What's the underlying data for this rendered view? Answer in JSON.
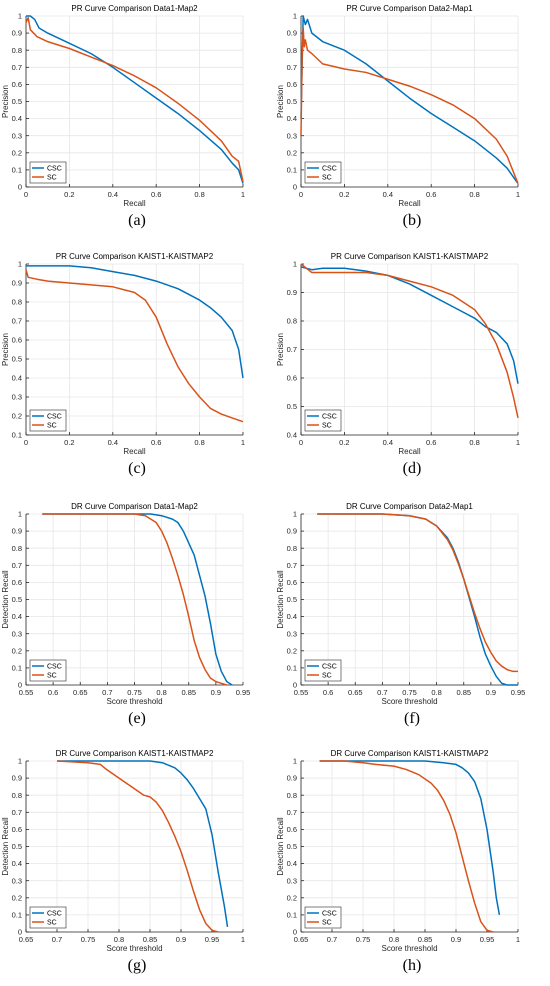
{
  "colors": {
    "csc": "#0072BD",
    "sc": "#D95319",
    "grid": "#e6e6e6",
    "axis": "#262626"
  },
  "chart_data": [
    {
      "id": "a",
      "type": "line",
      "label": "(a)",
      "title": "PR Curve Comparison Data1-Map2",
      "xlabel": "Recall",
      "ylabel": "Precision",
      "xlim": [
        0,
        1
      ],
      "ylim": [
        0,
        1
      ],
      "xticks": [
        0,
        0.2,
        0.4,
        0.6,
        0.8,
        1
      ],
      "xticklabels": [
        "0",
        "0.2",
        "0.4",
        "0.6",
        "0.8",
        "1"
      ],
      "yticks": [
        0,
        0.1,
        0.2,
        0.3,
        0.4,
        0.5,
        0.6,
        0.7,
        0.8,
        0.9,
        1
      ],
      "yticklabels": [
        "0",
        "0.1",
        "0.2",
        "0.3",
        "0.4",
        "0.5",
        "0.6",
        "0.7",
        "0.8",
        "0.9",
        "1"
      ],
      "grid": true,
      "legend": "bottom-left",
      "series": [
        {
          "name": "CSC",
          "x": [
            0,
            0.02,
            0.04,
            0.06,
            0.1,
            0.15,
            0.2,
            0.3,
            0.4,
            0.5,
            0.6,
            0.7,
            0.8,
            0.9,
            0.95,
            0.98,
            1
          ],
          "y": [
            1,
            1,
            0.98,
            0.93,
            0.9,
            0.87,
            0.84,
            0.78,
            0.7,
            0.61,
            0.52,
            0.43,
            0.33,
            0.22,
            0.14,
            0.1,
            0.02
          ]
        },
        {
          "name": "SC",
          "x": [
            0,
            0.01,
            0.02,
            0.05,
            0.1,
            0.2,
            0.3,
            0.4,
            0.5,
            0.6,
            0.7,
            0.8,
            0.9,
            0.95,
            0.98,
            1
          ],
          "y": [
            0.96,
            0.99,
            0.92,
            0.88,
            0.85,
            0.81,
            0.76,
            0.71,
            0.65,
            0.58,
            0.49,
            0.39,
            0.27,
            0.18,
            0.15,
            0.03
          ]
        }
      ]
    },
    {
      "id": "b",
      "type": "line",
      "label": "(b)",
      "title": "PR Curve Comparison Data2-Map1",
      "xlabel": "Recall",
      "ylabel": "Precision",
      "xlim": [
        0,
        1
      ],
      "ylim": [
        0,
        1
      ],
      "xticks": [
        0,
        0.2,
        0.4,
        0.6,
        0.8,
        1
      ],
      "xticklabels": [
        "0",
        "0.2",
        "0.4",
        "0.6",
        "0.8",
        "1"
      ],
      "yticks": [
        0,
        0.1,
        0.2,
        0.3,
        0.4,
        0.5,
        0.6,
        0.7,
        0.8,
        0.9,
        1
      ],
      "yticklabels": [
        "0",
        "0.1",
        "0.2",
        "0.3",
        "0.4",
        "0.5",
        "0.6",
        "0.7",
        "0.8",
        "0.9",
        "1"
      ],
      "grid": true,
      "legend": "bottom-left",
      "series": [
        {
          "name": "CSC",
          "x": [
            0,
            0.01,
            0.02,
            0.03,
            0.05,
            0.1,
            0.2,
            0.3,
            0.4,
            0.5,
            0.6,
            0.7,
            0.8,
            0.9,
            0.95,
            1
          ],
          "y": [
            0.4,
            1,
            0.95,
            0.98,
            0.9,
            0.85,
            0.8,
            0.72,
            0.62,
            0.52,
            0.43,
            0.35,
            0.27,
            0.17,
            0.11,
            0.02
          ]
        },
        {
          "name": "SC",
          "x": [
            0,
            0.005,
            0.01,
            0.015,
            0.02,
            0.03,
            0.05,
            0.1,
            0.2,
            0.3,
            0.4,
            0.5,
            0.6,
            0.7,
            0.8,
            0.9,
            0.95,
            1
          ],
          "y": [
            0.3,
            0.75,
            0.93,
            0.82,
            0.86,
            0.8,
            0.78,
            0.72,
            0.69,
            0.67,
            0.63,
            0.59,
            0.54,
            0.48,
            0.4,
            0.28,
            0.18,
            0.02
          ]
        }
      ]
    },
    {
      "id": "c",
      "type": "line",
      "label": "(c)",
      "title": "PR Curve Comparison KAIST1-KAISTMAP2",
      "xlabel": "Recall",
      "ylabel": "Precision",
      "xlim": [
        0,
        1
      ],
      "ylim": [
        0.1,
        1
      ],
      "xticks": [
        0,
        0.2,
        0.4,
        0.6,
        0.8,
        1
      ],
      "xticklabels": [
        "0",
        "0.2",
        "0.4",
        "0.6",
        "0.8",
        "1"
      ],
      "yticks": [
        0.1,
        0.2,
        0.3,
        0.4,
        0.5,
        0.6,
        0.7,
        0.8,
        0.9,
        1
      ],
      "yticklabels": [
        "0.1",
        "0.2",
        "0.3",
        "0.4",
        "0.5",
        "0.6",
        "0.7",
        "0.8",
        "0.9",
        "1"
      ],
      "grid": true,
      "legend": "bottom-left",
      "series": [
        {
          "name": "CSC",
          "x": [
            0,
            0.1,
            0.2,
            0.3,
            0.4,
            0.5,
            0.6,
            0.7,
            0.8,
            0.85,
            0.9,
            0.95,
            0.98,
            1
          ],
          "y": [
            0.99,
            0.99,
            0.99,
            0.98,
            0.96,
            0.94,
            0.91,
            0.87,
            0.81,
            0.77,
            0.72,
            0.65,
            0.55,
            0.4
          ]
        },
        {
          "name": "SC",
          "x": [
            0,
            0.01,
            0.05,
            0.1,
            0.2,
            0.3,
            0.4,
            0.5,
            0.55,
            0.6,
            0.65,
            0.7,
            0.75,
            0.8,
            0.85,
            0.9,
            0.95,
            1
          ],
          "y": [
            0.97,
            0.93,
            0.92,
            0.91,
            0.9,
            0.89,
            0.88,
            0.85,
            0.81,
            0.72,
            0.58,
            0.46,
            0.37,
            0.3,
            0.24,
            0.21,
            0.19,
            0.17
          ]
        }
      ]
    },
    {
      "id": "d",
      "type": "line",
      "label": "(d)",
      "title": "PR Curve Comparison KAIST1-KAISTMAP2",
      "xlabel": "Recall",
      "ylabel": "Precision",
      "xlim": [
        0,
        1
      ],
      "ylim": [
        0.4,
        1
      ],
      "xticks": [
        0,
        0.2,
        0.4,
        0.6,
        0.8,
        1
      ],
      "xticklabels": [
        "0",
        "0.2",
        "0.4",
        "0.6",
        "0.8",
        "1"
      ],
      "yticks": [
        0.4,
        0.5,
        0.6,
        0.7,
        0.8,
        0.9,
        1
      ],
      "yticklabels": [
        "0.4",
        "0.5",
        "0.6",
        "0.7",
        "0.8",
        "0.9",
        "1"
      ],
      "grid": true,
      "legend": "bottom-left",
      "series": [
        {
          "name": "CSC",
          "x": [
            0,
            0.05,
            0.1,
            0.2,
            0.3,
            0.4,
            0.5,
            0.6,
            0.7,
            0.8,
            0.85,
            0.9,
            0.95,
            0.98,
            1
          ],
          "y": [
            0.99,
            0.98,
            0.985,
            0.985,
            0.975,
            0.96,
            0.93,
            0.89,
            0.85,
            0.81,
            0.78,
            0.76,
            0.72,
            0.66,
            0.58
          ]
        },
        {
          "name": "SC",
          "x": [
            0,
            0.05,
            0.1,
            0.2,
            0.3,
            0.4,
            0.5,
            0.6,
            0.7,
            0.8,
            0.85,
            0.9,
            0.95,
            0.98,
            1
          ],
          "y": [
            1,
            0.97,
            0.97,
            0.97,
            0.97,
            0.96,
            0.94,
            0.92,
            0.89,
            0.84,
            0.79,
            0.72,
            0.62,
            0.53,
            0.46
          ]
        }
      ]
    },
    {
      "id": "e",
      "type": "line",
      "label": "(e)",
      "title": "DR Curve Comparison Data1-Map2",
      "xlabel": "Score threshold",
      "ylabel": "Detection Recall",
      "xlim": [
        0.55,
        0.95
      ],
      "ylim": [
        0,
        1
      ],
      "xticks": [
        0.55,
        0.6,
        0.65,
        0.7,
        0.75,
        0.8,
        0.85,
        0.9,
        0.95
      ],
      "xticklabels": [
        "0.55",
        "0.6",
        "0.65",
        "0.7",
        "0.75",
        "0.8",
        "0.85",
        "0.9",
        "0.95"
      ],
      "yticks": [
        0,
        0.1,
        0.2,
        0.3,
        0.4,
        0.5,
        0.6,
        0.7,
        0.8,
        0.9,
        1
      ],
      "yticklabels": [
        "0",
        "0.1",
        "0.2",
        "0.3",
        "0.4",
        "0.5",
        "0.6",
        "0.7",
        "0.8",
        "0.9",
        "1"
      ],
      "grid": true,
      "legend": "bottom-left",
      "series": [
        {
          "name": "CSC",
          "x": [
            0.58,
            0.7,
            0.75,
            0.78,
            0.8,
            0.82,
            0.83,
            0.84,
            0.85,
            0.86,
            0.87,
            0.88,
            0.89,
            0.9,
            0.91,
            0.92,
            0.93
          ],
          "y": [
            1,
            1,
            1,
            1,
            0.99,
            0.97,
            0.95,
            0.9,
            0.83,
            0.76,
            0.64,
            0.52,
            0.36,
            0.18,
            0.08,
            0.02,
            0
          ]
        },
        {
          "name": "SC",
          "x": [
            0.58,
            0.7,
            0.75,
            0.77,
            0.78,
            0.79,
            0.8,
            0.81,
            0.82,
            0.83,
            0.84,
            0.85,
            0.86,
            0.87,
            0.88,
            0.89,
            0.9,
            0.91,
            0.92
          ],
          "y": [
            1,
            1,
            1,
            0.99,
            0.97,
            0.95,
            0.9,
            0.83,
            0.74,
            0.64,
            0.53,
            0.4,
            0.26,
            0.16,
            0.09,
            0.04,
            0.02,
            0.01,
            0
          ]
        }
      ]
    },
    {
      "id": "f",
      "type": "line",
      "label": "(f)",
      "title": "DR Curve Comparison Data2-Map1",
      "xlabel": "Score threshold",
      "ylabel": "Detection Recall",
      "xlim": [
        0.55,
        0.95
      ],
      "ylim": [
        0,
        1
      ],
      "xticks": [
        0.55,
        0.6,
        0.65,
        0.7,
        0.75,
        0.8,
        0.85,
        0.9,
        0.95
      ],
      "xticklabels": [
        "0.55",
        "0.6",
        "0.65",
        "0.7",
        "0.75",
        "0.8",
        "0.85",
        "0.9",
        "0.95"
      ],
      "yticks": [
        0,
        0.1,
        0.2,
        0.3,
        0.4,
        0.5,
        0.6,
        0.7,
        0.8,
        0.9,
        1
      ],
      "yticklabels": [
        "0",
        "0.1",
        "0.2",
        "0.3",
        "0.4",
        "0.5",
        "0.6",
        "0.7",
        "0.8",
        "0.9",
        "1"
      ],
      "grid": true,
      "legend": "bottom-left",
      "series": [
        {
          "name": "CSC",
          "x": [
            0.58,
            0.7,
            0.75,
            0.78,
            0.8,
            0.82,
            0.83,
            0.84,
            0.85,
            0.86,
            0.87,
            0.88,
            0.89,
            0.9,
            0.91,
            0.92,
            0.93,
            0.95
          ],
          "y": [
            1,
            1,
            0.99,
            0.97,
            0.93,
            0.86,
            0.8,
            0.72,
            0.62,
            0.51,
            0.4,
            0.28,
            0.18,
            0.11,
            0.05,
            0.01,
            0,
            0
          ]
        },
        {
          "name": "SC",
          "x": [
            0.58,
            0.7,
            0.75,
            0.78,
            0.8,
            0.82,
            0.83,
            0.84,
            0.85,
            0.86,
            0.87,
            0.88,
            0.89,
            0.9,
            0.91,
            0.92,
            0.93,
            0.94,
            0.95
          ],
          "y": [
            1,
            1,
            0.99,
            0.97,
            0.93,
            0.85,
            0.79,
            0.71,
            0.62,
            0.52,
            0.42,
            0.33,
            0.25,
            0.19,
            0.14,
            0.11,
            0.09,
            0.08,
            0.08
          ]
        }
      ]
    },
    {
      "id": "g",
      "type": "line",
      "label": "(g)",
      "title": "DR Curve Comparison KAIST1-KAISTMAP2",
      "xlabel": "Score threshold",
      "ylabel": "Detection Recall",
      "xlim": [
        0.65,
        1
      ],
      "ylim": [
        0,
        1
      ],
      "xticks": [
        0.65,
        0.7,
        0.75,
        0.8,
        0.85,
        0.9,
        0.95,
        1
      ],
      "xticklabels": [
        "0.65",
        "0.7",
        "0.75",
        "0.8",
        "0.85",
        "0.9",
        "0.95",
        "1"
      ],
      "yticks": [
        0,
        0.1,
        0.2,
        0.3,
        0.4,
        0.5,
        0.6,
        0.7,
        0.8,
        0.9,
        1
      ],
      "yticklabels": [
        "0",
        "0.1",
        "0.2",
        "0.3",
        "0.4",
        "0.5",
        "0.6",
        "0.7",
        "0.8",
        "0.9",
        "1"
      ],
      "grid": true,
      "legend": "bottom-left",
      "series": [
        {
          "name": "CSC",
          "x": [
            0.7,
            0.75,
            0.8,
            0.85,
            0.87,
            0.89,
            0.9,
            0.91,
            0.92,
            0.93,
            0.94,
            0.95,
            0.96,
            0.97,
            0.975
          ],
          "y": [
            1,
            1,
            1,
            1,
            0.99,
            0.96,
            0.93,
            0.89,
            0.84,
            0.78,
            0.72,
            0.57,
            0.35,
            0.15,
            0.03
          ]
        },
        {
          "name": "SC",
          "x": [
            0.7,
            0.75,
            0.77,
            0.78,
            0.8,
            0.82,
            0.84,
            0.85,
            0.86,
            0.87,
            0.88,
            0.89,
            0.9,
            0.91,
            0.92,
            0.93,
            0.94,
            0.95,
            0.96
          ],
          "y": [
            1,
            0.99,
            0.98,
            0.95,
            0.9,
            0.85,
            0.8,
            0.79,
            0.76,
            0.71,
            0.64,
            0.56,
            0.47,
            0.36,
            0.24,
            0.13,
            0.05,
            0.01,
            0
          ]
        }
      ]
    },
    {
      "id": "h",
      "type": "line",
      "label": "(h)",
      "title": "DR Curve Comparison KAIST1-KAISTMAP2",
      "xlabel": "Score threshold",
      "ylabel": "Detection Recall",
      "xlim": [
        0.65,
        1
      ],
      "ylim": [
        0,
        1
      ],
      "xticks": [
        0.65,
        0.7,
        0.75,
        0.8,
        0.85,
        0.9,
        0.95,
        1
      ],
      "xticklabels": [
        "0.65",
        "0.7",
        "0.75",
        "0.8",
        "0.85",
        "0.9",
        "0.95",
        "1"
      ],
      "yticks": [
        0,
        0.1,
        0.2,
        0.3,
        0.4,
        0.5,
        0.6,
        0.7,
        0.8,
        0.9,
        1
      ],
      "yticklabels": [
        "0",
        "0.1",
        "0.2",
        "0.3",
        "0.4",
        "0.5",
        "0.6",
        "0.7",
        "0.8",
        "0.9",
        "1"
      ],
      "grid": true,
      "legend": "bottom-left",
      "series": [
        {
          "name": "CSC",
          "x": [
            0.68,
            0.75,
            0.8,
            0.85,
            0.88,
            0.9,
            0.91,
            0.92,
            0.93,
            0.94,
            0.95,
            0.96,
            0.965,
            0.97
          ],
          "y": [
            1,
            1,
            1,
            1,
            0.99,
            0.98,
            0.96,
            0.93,
            0.88,
            0.78,
            0.6,
            0.35,
            0.2,
            0.1
          ]
        },
        {
          "name": "SC",
          "x": [
            0.68,
            0.72,
            0.75,
            0.77,
            0.8,
            0.82,
            0.84,
            0.86,
            0.87,
            0.88,
            0.89,
            0.9,
            0.91,
            0.92,
            0.93,
            0.94,
            0.95,
            0.96
          ],
          "y": [
            1,
            1,
            0.99,
            0.98,
            0.97,
            0.95,
            0.92,
            0.87,
            0.83,
            0.77,
            0.69,
            0.58,
            0.44,
            0.3,
            0.17,
            0.06,
            0.01,
            0
          ]
        }
      ]
    }
  ]
}
